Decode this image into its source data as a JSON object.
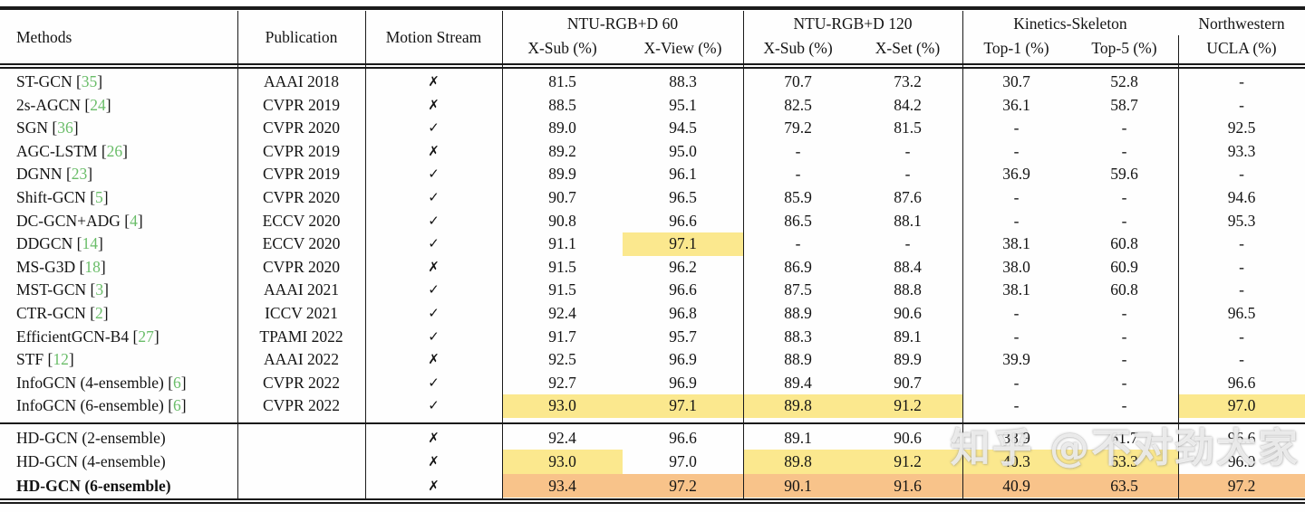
{
  "colors": {
    "highlight_second_best": "#fbe88e",
    "highlight_best": "#f8c38a",
    "citation_green": "#6abd69",
    "rule_black": "#1a1a1a"
  },
  "watermark": {
    "text": "知乎 @不对劲大家"
  },
  "table": {
    "citation_format": {
      "open": "[",
      "close": "]"
    },
    "headers": {
      "methods": "Methods",
      "publication": "Publication",
      "motion_stream": "Motion Stream",
      "groups": [
        {
          "title": "NTU-RGB+D 60",
          "cols": [
            "X-Sub (%)",
            "X-View (%)"
          ]
        },
        {
          "title": "NTU-RGB+D 120",
          "cols": [
            "X-Sub (%)",
            "X-Set (%)"
          ]
        },
        {
          "title": "Kinetics-Skeleton",
          "cols": [
            "Top-1 (%)",
            "Top-5 (%)"
          ]
        },
        {
          "title": "Northwestern",
          "cols": [
            "UCLA (%)"
          ]
        }
      ]
    },
    "rows": [
      {
        "method": "ST-GCN",
        "cite": "35",
        "publication": "AAAI 2018",
        "motion": "✗",
        "values": [
          "81.5",
          "88.3",
          "70.7",
          "73.2",
          "30.7",
          "52.8",
          "-"
        ],
        "hl": [
          "",
          "",
          "",
          "",
          "",
          "",
          ""
        ]
      },
      {
        "method": "2s-AGCN",
        "cite": "24",
        "publication": "CVPR 2019",
        "motion": "✗",
        "values": [
          "88.5",
          "95.1",
          "82.5",
          "84.2",
          "36.1",
          "58.7",
          "-"
        ],
        "hl": [
          "",
          "",
          "",
          "",
          "",
          "",
          ""
        ]
      },
      {
        "method": "SGN",
        "cite": "36",
        "publication": "CVPR 2020",
        "motion": "✓",
        "values": [
          "89.0",
          "94.5",
          "79.2",
          "81.5",
          "-",
          "-",
          "92.5"
        ],
        "hl": [
          "",
          "",
          "",
          "",
          "",
          "",
          ""
        ]
      },
      {
        "method": "AGC-LSTM",
        "cite": "26",
        "publication": "CVPR 2019",
        "motion": "✗",
        "values": [
          "89.2",
          "95.0",
          "-",
          "-",
          "-",
          "-",
          "93.3"
        ],
        "hl": [
          "",
          "",
          "",
          "",
          "",
          "",
          ""
        ]
      },
      {
        "method": "DGNN",
        "cite": "23",
        "publication": "CVPR 2019",
        "motion": "✓",
        "values": [
          "89.9",
          "96.1",
          "-",
          "-",
          "36.9",
          "59.6",
          "-"
        ],
        "hl": [
          "",
          "",
          "",
          "",
          "",
          "",
          ""
        ]
      },
      {
        "method": "Shift-GCN",
        "cite": "5",
        "publication": "CVPR 2020",
        "motion": "✓",
        "values": [
          "90.7",
          "96.5",
          "85.9",
          "87.6",
          "-",
          "-",
          "94.6"
        ],
        "hl": [
          "",
          "",
          "",
          "",
          "",
          "",
          ""
        ]
      },
      {
        "method": "DC-GCN+ADG",
        "cite": "4",
        "publication": "ECCV 2020",
        "motion": "✓",
        "values": [
          "90.8",
          "96.6",
          "86.5",
          "88.1",
          "-",
          "-",
          "95.3"
        ],
        "hl": [
          "",
          "",
          "",
          "",
          "",
          "",
          ""
        ]
      },
      {
        "method": "DDGCN",
        "cite": "14",
        "publication": "ECCV 2020",
        "motion": "✓",
        "values": [
          "91.1",
          "97.1",
          "-",
          "-",
          "38.1",
          "60.8",
          "-"
        ],
        "hl": [
          "",
          "y",
          "",
          "",
          "",
          "",
          ""
        ]
      },
      {
        "method": "MS-G3D",
        "cite": "18",
        "publication": "CVPR 2020",
        "motion": "✗",
        "values": [
          "91.5",
          "96.2",
          "86.9",
          "88.4",
          "38.0",
          "60.9",
          "-"
        ],
        "hl": [
          "",
          "",
          "",
          "",
          "",
          "",
          ""
        ]
      },
      {
        "method": "MST-GCN",
        "cite": "3",
        "publication": "AAAI 2021",
        "motion": "✓",
        "values": [
          "91.5",
          "96.6",
          "87.5",
          "88.8",
          "38.1",
          "60.8",
          "-"
        ],
        "hl": [
          "",
          "",
          "",
          "",
          "",
          "",
          ""
        ]
      },
      {
        "method": "CTR-GCN",
        "cite": "2",
        "publication": "ICCV 2021",
        "motion": "✓",
        "values": [
          "92.4",
          "96.8",
          "88.9",
          "90.6",
          "-",
          "-",
          "96.5"
        ],
        "hl": [
          "",
          "",
          "",
          "",
          "",
          "",
          ""
        ]
      },
      {
        "method": "EfficientGCN-B4",
        "cite": "27",
        "publication": "TPAMI 2022",
        "motion": "✓",
        "values": [
          "91.7",
          "95.7",
          "88.3",
          "89.1",
          "-",
          "-",
          "-"
        ],
        "hl": [
          "",
          "",
          "",
          "",
          "",
          "",
          ""
        ]
      },
      {
        "method": "STF",
        "cite": "12",
        "publication": "AAAI 2022",
        "motion": "✗",
        "values": [
          "92.5",
          "96.9",
          "88.9",
          "89.9",
          "39.9",
          "-",
          "-"
        ],
        "hl": [
          "",
          "",
          "",
          "",
          "",
          "",
          ""
        ]
      },
      {
        "method": "InfoGCN (4-ensemble)",
        "cite": "6",
        "publication": "CVPR 2022",
        "motion": "✓",
        "values": [
          "92.7",
          "96.9",
          "89.4",
          "90.7",
          "-",
          "-",
          "96.6"
        ],
        "hl": [
          "",
          "",
          "",
          "",
          "",
          "",
          ""
        ]
      },
      {
        "method": "InfoGCN (6-ensemble)",
        "cite": "6",
        "publication": "CVPR 2022",
        "motion": "✓",
        "values": [
          "93.0",
          "97.1",
          "89.8",
          "91.2",
          "-",
          "-",
          "97.0"
        ],
        "hl": [
          "y",
          "y",
          "y",
          "y",
          "",
          "",
          "y"
        ]
      }
    ],
    "hd_rows": [
      {
        "method": "HD-GCN (2-ensemble)",
        "cite": null,
        "publication": "",
        "motion": "✗",
        "values": [
          "92.4",
          "96.6",
          "89.1",
          "90.6",
          "38.9",
          "61.7",
          "96.6"
        ],
        "hl": [
          "",
          "",
          "",
          "",
          "",
          "",
          ""
        ]
      },
      {
        "method": "HD-GCN (4-ensemble)",
        "cite": null,
        "publication": "",
        "motion": "✗",
        "values": [
          "93.0",
          "97.0",
          "89.8",
          "91.2",
          "40.3",
          "63.3",
          "96.9"
        ],
        "hl": [
          "y",
          "",
          "y",
          "y",
          "y",
          "y",
          ""
        ]
      },
      {
        "method": "HD-GCN (6-ensemble)",
        "cite": null,
        "publication": "",
        "motion": "✗",
        "bold": true,
        "values": [
          "93.4",
          "97.2",
          "90.1",
          "91.6",
          "40.9",
          "63.5",
          "97.2"
        ],
        "hl": [
          "o",
          "o",
          "o",
          "o",
          "o",
          "o",
          "o"
        ]
      }
    ]
  }
}
